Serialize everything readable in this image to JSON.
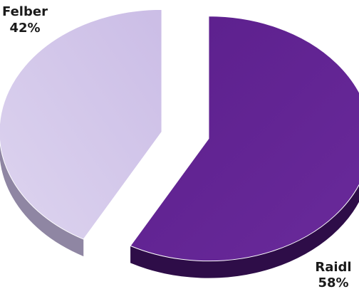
{
  "chart_data": {
    "type": "pie",
    "categories": [
      "Raidl",
      "Felber"
    ],
    "values": [
      58,
      42
    ],
    "value_labels": [
      "58%",
      "42%"
    ],
    "colors": [
      "#5b1f8c",
      "#cbbde6"
    ],
    "colors_light": [
      "#6a2a9b",
      "#ddd4ef"
    ],
    "side_colors": [
      "#2e0d48",
      "#8f86a3"
    ],
    "style": "3d-exploded",
    "legend": "none"
  }
}
